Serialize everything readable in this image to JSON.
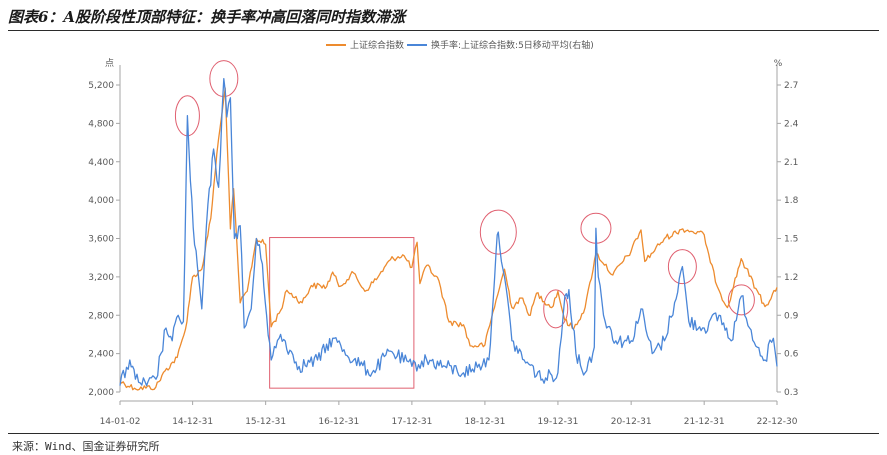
{
  "header": {
    "title": "图表6：A股阶段性顶部特征：换手率冲高回落同时指数滞涨"
  },
  "footer": {
    "source": "来源：Wind、国金证券研究所"
  },
  "chart_data": {
    "type": "line",
    "legend_position": "top-center",
    "grid": false,
    "left_unit": "点",
    "right_unit": "%",
    "x_ticks": [
      "14-01-02",
      "14-12-31",
      "15-12-31",
      "16-12-31",
      "17-12-31",
      "18-12-31",
      "19-12-31",
      "20-12-31",
      "21-12-31",
      "22-12-30"
    ],
    "ylim_left": [
      2000,
      5200
    ],
    "yticks_left": [
      "2,000",
      "2,400",
      "2,800",
      "3,200",
      "3,600",
      "4,000",
      "4,400",
      "4,800",
      "5,200"
    ],
    "ylim_right": [
      0.3,
      2.7
    ],
    "yticks_right": [
      "0.3",
      "0.6",
      "0.9",
      "1.2",
      "1.5",
      "1.8",
      "2.1",
      "2.4",
      "2.7"
    ],
    "colors": {
      "index": "#ED8B2E",
      "turnover": "#4A86D8",
      "markers": "#E06070",
      "axis": "#a6a6a6"
    },
    "series": [
      {
        "name": "上证综合指数",
        "axis": "left",
        "points": [
          [
            "2014-01-02",
            2110
          ],
          [
            "2014-03-15",
            2040
          ],
          [
            "2014-06-30",
            2050
          ],
          [
            "2014-08-15",
            2220
          ],
          [
            "2014-10-15",
            2360
          ],
          [
            "2014-11-25",
            2650
          ],
          [
            "2014-12-31",
            3200
          ],
          [
            "2015-02-15",
            3280
          ],
          [
            "2015-04-01",
            3810
          ],
          [
            "2015-05-01",
            4480
          ],
          [
            "2015-06-12",
            5170
          ],
          [
            "2015-07-08",
            3700
          ],
          [
            "2015-07-24",
            4120
          ],
          [
            "2015-08-26",
            2930
          ],
          [
            "2015-09-30",
            3050
          ],
          [
            "2015-11-15",
            3600
          ],
          [
            "2015-12-31",
            3540
          ],
          [
            "2016-01-28",
            2680
          ],
          [
            "2016-03-15",
            2850
          ],
          [
            "2016-04-15",
            3060
          ],
          [
            "2016-06-30",
            2930
          ],
          [
            "2016-08-15",
            3110
          ],
          [
            "2016-10-31",
            3100
          ],
          [
            "2016-11-30",
            3250
          ],
          [
            "2016-12-31",
            3100
          ],
          [
            "2017-03-15",
            3240
          ],
          [
            "2017-05-10",
            3050
          ],
          [
            "2017-07-15",
            3200
          ],
          [
            "2017-09-15",
            3380
          ],
          [
            "2017-11-15",
            3430
          ],
          [
            "2017-12-31",
            3300
          ],
          [
            "2018-01-26",
            3560
          ],
          [
            "2018-02-09",
            3130
          ],
          [
            "2018-03-15",
            3320
          ],
          [
            "2018-05-15",
            3160
          ],
          [
            "2018-07-05",
            2730
          ],
          [
            "2018-09-15",
            2700
          ],
          [
            "2018-10-18",
            2480
          ],
          [
            "2018-12-31",
            2490
          ],
          [
            "2019-02-25",
            2960
          ],
          [
            "2019-04-08",
            3280
          ],
          [
            "2019-05-15",
            2880
          ],
          [
            "2019-06-30",
            2980
          ],
          [
            "2019-08-15",
            2800
          ],
          [
            "2019-09-15",
            3030
          ],
          [
            "2019-11-30",
            2880
          ],
          [
            "2019-12-31",
            3050
          ],
          [
            "2020-02-03",
            2750
          ],
          [
            "2020-03-19",
            2660
          ],
          [
            "2020-05-15",
            2880
          ],
          [
            "2020-07-09",
            3450
          ],
          [
            "2020-09-30",
            3220
          ],
          [
            "2020-12-31",
            3470
          ],
          [
            "2021-02-18",
            3690
          ],
          [
            "2021-03-09",
            3360
          ],
          [
            "2021-06-15",
            3600
          ],
          [
            "2021-09-15",
            3700
          ],
          [
            "2021-12-31",
            3640
          ],
          [
            "2022-01-31",
            3350
          ],
          [
            "2022-03-15",
            3060
          ],
          [
            "2022-04-26",
            2880
          ],
          [
            "2022-07-04",
            3390
          ],
          [
            "2022-09-15",
            3080
          ],
          [
            "2022-10-31",
            2890
          ],
          [
            "2022-12-30",
            3090
          ]
        ]
      },
      {
        "name": "换手率:上证综合指数:5日移动平均(右轴)",
        "axis": "right",
        "points": [
          [
            "2014-01-02",
            0.35
          ],
          [
            "2014-02-20",
            0.55
          ],
          [
            "2014-03-20",
            0.4
          ],
          [
            "2014-05-15",
            0.35
          ],
          [
            "2014-07-01",
            0.4
          ],
          [
            "2014-08-20",
            0.8
          ],
          [
            "2014-09-20",
            0.7
          ],
          [
            "2014-10-20",
            0.9
          ],
          [
            "2014-11-15",
            0.85
          ],
          [
            "2014-12-05",
            2.46
          ],
          [
            "2014-12-20",
            1.95
          ],
          [
            "2015-01-10",
            1.45
          ],
          [
            "2015-02-15",
            0.95
          ],
          [
            "2015-03-10",
            1.6
          ],
          [
            "2015-04-15",
            2.2
          ],
          [
            "2015-05-10",
            1.9
          ],
          [
            "2015-06-05",
            2.75
          ],
          [
            "2015-06-20",
            2.45
          ],
          [
            "2015-07-08",
            2.6
          ],
          [
            "2015-07-28",
            1.5
          ],
          [
            "2015-08-26",
            1.6
          ],
          [
            "2015-09-15",
            0.8
          ],
          [
            "2015-10-20",
            0.95
          ],
          [
            "2015-11-15",
            1.5
          ],
          [
            "2015-12-15",
            1.3
          ],
          [
            "2016-01-05",
            0.9
          ],
          [
            "2016-01-28",
            0.55
          ],
          [
            "2016-03-15",
            0.75
          ],
          [
            "2016-06-15",
            0.5
          ],
          [
            "2016-09-15",
            0.55
          ],
          [
            "2016-11-30",
            0.72
          ],
          [
            "2017-03-15",
            0.55
          ],
          [
            "2017-06-15",
            0.45
          ],
          [
            "2017-09-15",
            0.62
          ],
          [
            "2017-12-31",
            0.5
          ],
          [
            "2018-03-15",
            0.55
          ],
          [
            "2018-06-15",
            0.5
          ],
          [
            "2018-09-15",
            0.45
          ],
          [
            "2018-10-30",
            0.48
          ],
          [
            "2019-01-20",
            0.55
          ],
          [
            "2019-02-25",
            1.4
          ],
          [
            "2019-03-08",
            1.55
          ],
          [
            "2019-04-08",
            1.2
          ],
          [
            "2019-05-15",
            0.7
          ],
          [
            "2019-07-15",
            0.55
          ],
          [
            "2019-10-15",
            0.4
          ],
          [
            "2019-12-31",
            0.45
          ],
          [
            "2020-02-04",
            1.05
          ],
          [
            "2020-02-24",
            1.1
          ],
          [
            "2020-03-30",
            0.6
          ],
          [
            "2020-05-15",
            0.45
          ],
          [
            "2020-06-30",
            0.65
          ],
          [
            "2020-07-08",
            1.58
          ],
          [
            "2020-07-20",
            1.2
          ],
          [
            "2020-08-15",
            0.9
          ],
          [
            "2020-10-15",
            0.7
          ],
          [
            "2020-12-31",
            0.7
          ],
          [
            "2021-02-18",
            0.95
          ],
          [
            "2021-04-15",
            0.6
          ],
          [
            "2021-06-15",
            0.7
          ],
          [
            "2021-08-05",
            1.0
          ],
          [
            "2021-09-13",
            1.28
          ],
          [
            "2021-10-15",
            0.85
          ],
          [
            "2021-12-31",
            0.8
          ],
          [
            "2022-03-15",
            0.9
          ],
          [
            "2022-05-15",
            0.7
          ],
          [
            "2022-07-05",
            1.05
          ],
          [
            "2022-08-15",
            0.8
          ],
          [
            "2022-10-31",
            0.55
          ],
          [
            "2022-12-12",
            0.72
          ],
          [
            "2022-12-30",
            0.5
          ]
        ]
      }
    ]
  }
}
